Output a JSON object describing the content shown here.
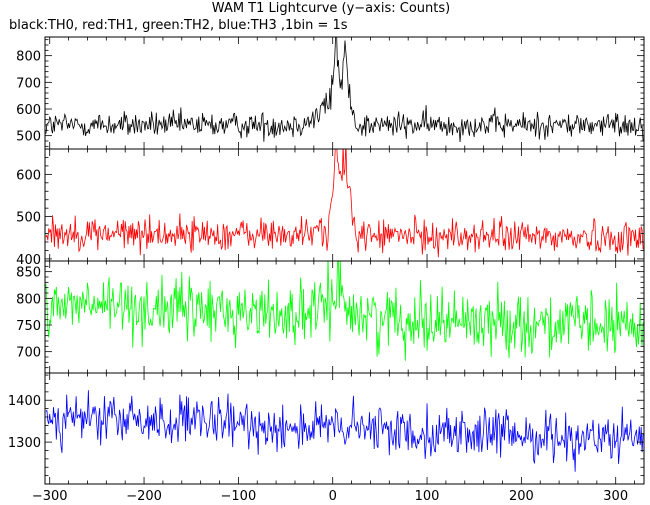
{
  "chart_data": {
    "type": "line",
    "title": "WAM T1 Lightcurve (y−axis: Counts)",
    "subtitle": "black:TH0, red:TH1, green:TH2, blue:TH3 ,1bin = 1s",
    "xlabel": "",
    "ylabel": "",
    "grid": false,
    "legend": "none",
    "x_range": [
      -305,
      330
    ],
    "x_ticks": [
      -300,
      -200,
      -100,
      0,
      100,
      200,
      300
    ],
    "x_tick_labels": [
      "−300",
      "−200",
      "−100",
      "0",
      "100",
      "200",
      "300"
    ],
    "panels": [
      {
        "name": "TH0",
        "color": "#000000",
        "ylim": [
          450,
          870
        ],
        "y_ticks": [
          500,
          600,
          700,
          800
        ],
        "y_tick_labels": [
          "500",
          "600",
          "700",
          "800"
        ],
        "baseline": 540,
        "noise": 32,
        "trend": 0,
        "features": [
          [
            -15,
            12,
            25
          ],
          [
            -5,
            6,
            60
          ],
          [
            3,
            2.5,
            230
          ],
          [
            7,
            3,
            110
          ],
          [
            13,
            2,
            210
          ],
          [
            17,
            4,
            90
          ]
        ]
      },
      {
        "name": "TH1",
        "color": "#ff0000",
        "ylim": [
          395,
          660
        ],
        "y_ticks": [
          400,
          500,
          600
        ],
        "y_tick_labels": [
          "400",
          "500",
          "600"
        ],
        "baseline": 462,
        "noise": 26,
        "trend": -12,
        "features": [
          [
            -10,
            8,
            15
          ],
          [
            3,
            3,
            150
          ],
          [
            8,
            4,
            80
          ],
          [
            14,
            3,
            110
          ],
          [
            18,
            4,
            50
          ]
        ]
      },
      {
        "name": "TH2",
        "color": "#00ff00",
        "ylim": [
          660,
          870
        ],
        "y_ticks": [
          700,
          750,
          800,
          850
        ],
        "y_tick_labels": [
          "700",
          "750",
          "800",
          "850"
        ],
        "baseline": 790,
        "noise": 38,
        "trend": -45,
        "features": [
          [
            2,
            8,
            40
          ],
          [
            12,
            6,
            20
          ]
        ]
      },
      {
        "name": "TH3",
        "color": "#0000ff",
        "ylim": [
          1200,
          1465
        ],
        "y_ticks": [
          1300,
          1400
        ],
        "y_tick_labels": [
          "1300",
          "1400"
        ],
        "baseline": 1360,
        "noise": 38,
        "trend": -55,
        "features": []
      }
    ]
  }
}
